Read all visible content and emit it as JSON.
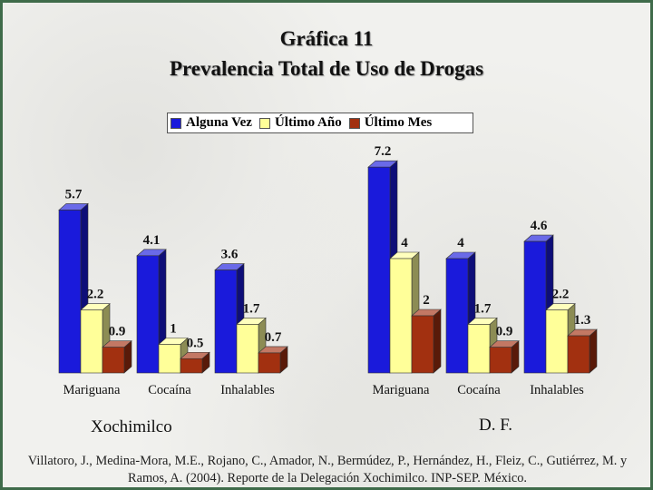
{
  "header": {
    "title": "Gráfica 11",
    "subtitle": "Prevalencia Total de Uso de Drogas"
  },
  "colors": {
    "alguna_vez": "#1a1adb",
    "ultimo_ano": "#ffff99",
    "ultimo_mes": "#a23010"
  },
  "chart_data": [
    {
      "type": "bar",
      "panel_label": "Xochimilco",
      "categories": [
        "Mariguana",
        "Cocaína",
        "Inhalables"
      ],
      "series": [
        {
          "name": "Alguna Vez",
          "values": [
            5.7,
            4.1,
            3.6
          ],
          "labels": [
            "5.7",
            "4.1",
            "3.6"
          ]
        },
        {
          "name": "Último Año",
          "values": [
            2.2,
            1.0,
            1.7
          ],
          "labels": [
            "2.2",
            "1",
            "1.7"
          ]
        },
        {
          "name": "Último Mes",
          "values": [
            0.9,
            0.5,
            0.7
          ],
          "labels": [
            "0.9",
            "0.5",
            "0.7"
          ]
        }
      ],
      "grid": false,
      "legend": "top"
    },
    {
      "type": "bar",
      "panel_label": "D. F.",
      "categories": [
        "Mariguana",
        "Cocaína",
        "Inhalables"
      ],
      "series": [
        {
          "name": "Alguna Vez",
          "values": [
            7.2,
            4.0,
            4.6
          ],
          "labels": [
            "7.2",
            "4",
            "4.6"
          ]
        },
        {
          "name": "Último Año",
          "values": [
            4.0,
            1.7,
            2.2
          ],
          "labels": [
            "4",
            "1.7",
            "2.2"
          ]
        },
        {
          "name": "Último Mes",
          "values": [
            2.0,
            0.9,
            1.3
          ],
          "labels": [
            "2",
            "0.9",
            "1.3"
          ]
        }
      ],
      "grid": false,
      "legend": "top"
    }
  ],
  "footer": {
    "source": "Villatoro, J., Medina-Mora, M.E., Rojano, C., Amador, N., Bermúdez, P., Hernández, H., Fleiz, C., Gutiérrez, M. y Ramos, A. (2004). Reporte de la Delegación Xochimilco. INP-SEP. México."
  }
}
